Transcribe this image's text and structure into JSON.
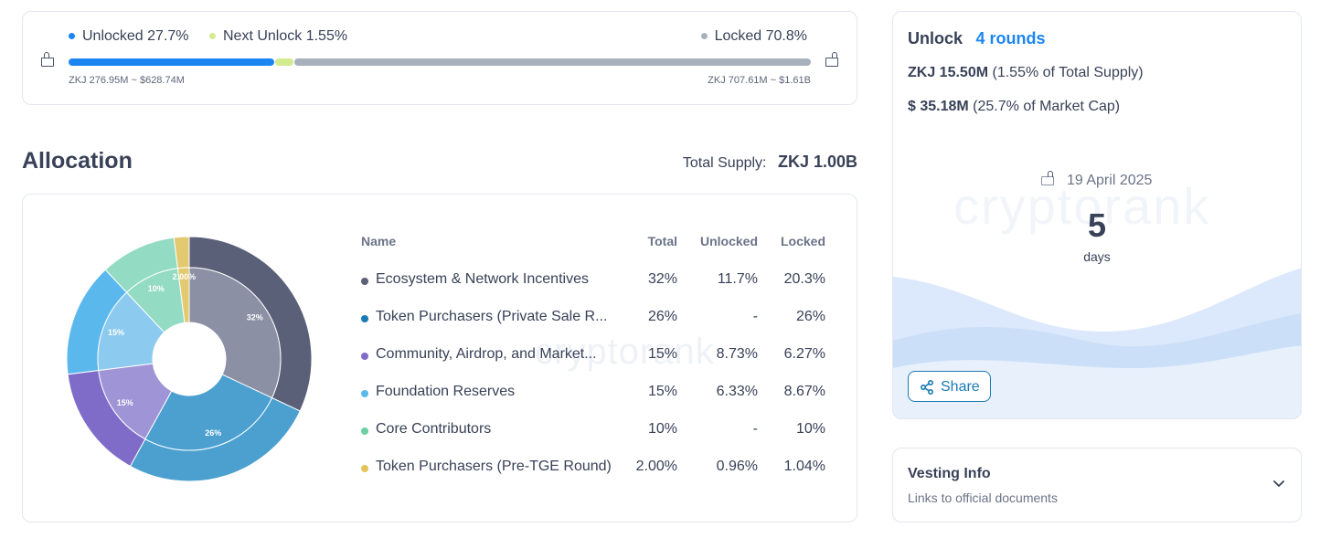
{
  "progress": {
    "unlocked_label": "Unlocked 27.7%",
    "unlocked_fraction": 0.277,
    "next_label": "Next Unlock 1.55%",
    "next_fraction": 0.0155,
    "locked_label": "Locked 70.8%",
    "locked_fraction": 0.708,
    "unlocked_amount": "ZKJ 276.95M ~ $628.74M",
    "locked_amount": "ZKJ 707.61M ~ $1.61B",
    "colors": {
      "unlocked": "#1b86f2",
      "next": "#d3eb8f",
      "locked": "#a9b0bd"
    }
  },
  "allocation": {
    "title": "Allocation",
    "total_supply_label": "Total Supply:",
    "total_supply_value": "ZKJ 1.00B",
    "columns": [
      "Name",
      "Total",
      "Unlocked",
      "Locked"
    ],
    "rows": [
      {
        "name": "Ecosystem & Network Incentives",
        "total": "32%",
        "unlocked": "11.7%",
        "locked": "20.3%",
        "color": "#5a6078"
      },
      {
        "name": "Token Purchasers (Private Sale R...",
        "total": "26%",
        "unlocked": "-",
        "locked": "26%",
        "color": "#1a7ab5"
      },
      {
        "name": "Community, Airdrop, and Market...",
        "total": "15%",
        "unlocked": "8.73%",
        "locked": "6.27%",
        "color": "#7f6cc9"
      },
      {
        "name": "Foundation Reserves",
        "total": "15%",
        "unlocked": "6.33%",
        "locked": "8.67%",
        "color": "#5bb8ec"
      },
      {
        "name": "Core Contributors",
        "total": "10%",
        "unlocked": "-",
        "locked": "10%",
        "color": "#6cd0a4"
      },
      {
        "name": "Token Purchasers (Pre-TGE Round)",
        "total": "2.00%",
        "unlocked": "0.96%",
        "locked": "1.04%",
        "color": "#e3c45b"
      }
    ],
    "watermark": "cryptorank"
  },
  "chart_data": {
    "type": "pie",
    "categories": [
      "Ecosystem & Network Incentives",
      "Token Purchasers (Private Sale Round)",
      "Community, Airdrop, and Marketing",
      "Foundation Reserves",
      "Core Contributors",
      "Token Purchasers (Pre-TGE Round)"
    ],
    "values": [
      32,
      26,
      15,
      15,
      10,
      2
    ],
    "locked_values": [
      20.3,
      26,
      6.27,
      8.67,
      10,
      1.04
    ],
    "labels": [
      "32%",
      "26%",
      "15%",
      "15%",
      "10%",
      "2.00%"
    ],
    "outer_colors": [
      "#5a6078",
      "#4ba0d0",
      "#7f6cc9",
      "#5bb8ec",
      "#93dcc3",
      "#e3c96f"
    ],
    "inner_colors": [
      "#8b90a4",
      "#4ba0d0",
      "#9f94d6",
      "#8ccbef",
      "#93dcc3",
      "#e3c96f"
    ]
  },
  "unlock": {
    "title": "Unlock",
    "rounds": "4 rounds",
    "amount_bold": "ZKJ 15.50M",
    "amount_note": "(1.55% of Total Supply)",
    "value_bold": "$ 35.18M",
    "value_note": "(25.7% of Market Cap)",
    "date": "19 April 2025",
    "count": "5",
    "unit": "days",
    "watermark": "cryptorank",
    "share_label": "Share"
  },
  "vesting": {
    "title": "Vesting Info",
    "subtitle": "Links to official documents"
  }
}
